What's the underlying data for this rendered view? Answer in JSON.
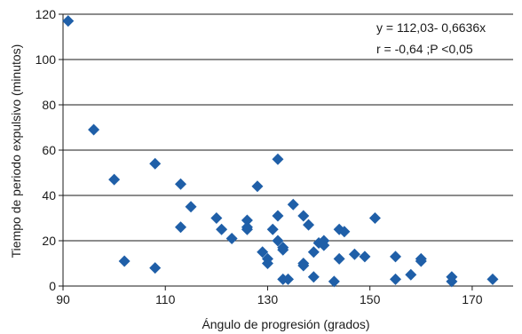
{
  "chart_data": {
    "type": "scatter",
    "title": "",
    "xlabel": "Ángulo de progresión (grados)",
    "ylabel": "Tiempo de periodo expulsivo (minutos)",
    "xlim": [
      90,
      178
    ],
    "ylim": [
      0,
      120
    ],
    "xticks": [
      90,
      110,
      130,
      150,
      170
    ],
    "yticks": [
      0,
      20,
      40,
      60,
      80,
      100,
      120
    ],
    "grid": "horizontal",
    "marker": "diamond",
    "color": "#1f5fa8",
    "annotations": [
      "y = 112,03- 0,6636x",
      "r = -0,64 ;P <0,05"
    ],
    "x": [
      91,
      96,
      100,
      102,
      108,
      108,
      113,
      113,
      115,
      120,
      121,
      123,
      126,
      126,
      126,
      128,
      129,
      130,
      130,
      131,
      132,
      132,
      132,
      133,
      133,
      133,
      134,
      135,
      137,
      137,
      137,
      138,
      139,
      139,
      140,
      141,
      141,
      143,
      144,
      144,
      145,
      147,
      149,
      151,
      155,
      155,
      160,
      160,
      158,
      166,
      166,
      174
    ],
    "y": [
      117,
      69,
      47,
      11,
      54,
      8,
      45,
      26,
      35,
      30,
      25,
      21,
      29,
      25,
      26,
      44,
      15,
      12,
      10,
      25,
      56,
      31,
      20,
      3,
      17,
      16,
      3,
      36,
      31,
      9,
      10,
      27,
      15,
      4,
      19,
      20,
      18,
      2,
      25,
      12,
      24,
      14,
      13,
      30,
      13,
      3,
      11,
      12,
      5,
      4,
      2,
      3
    ]
  }
}
